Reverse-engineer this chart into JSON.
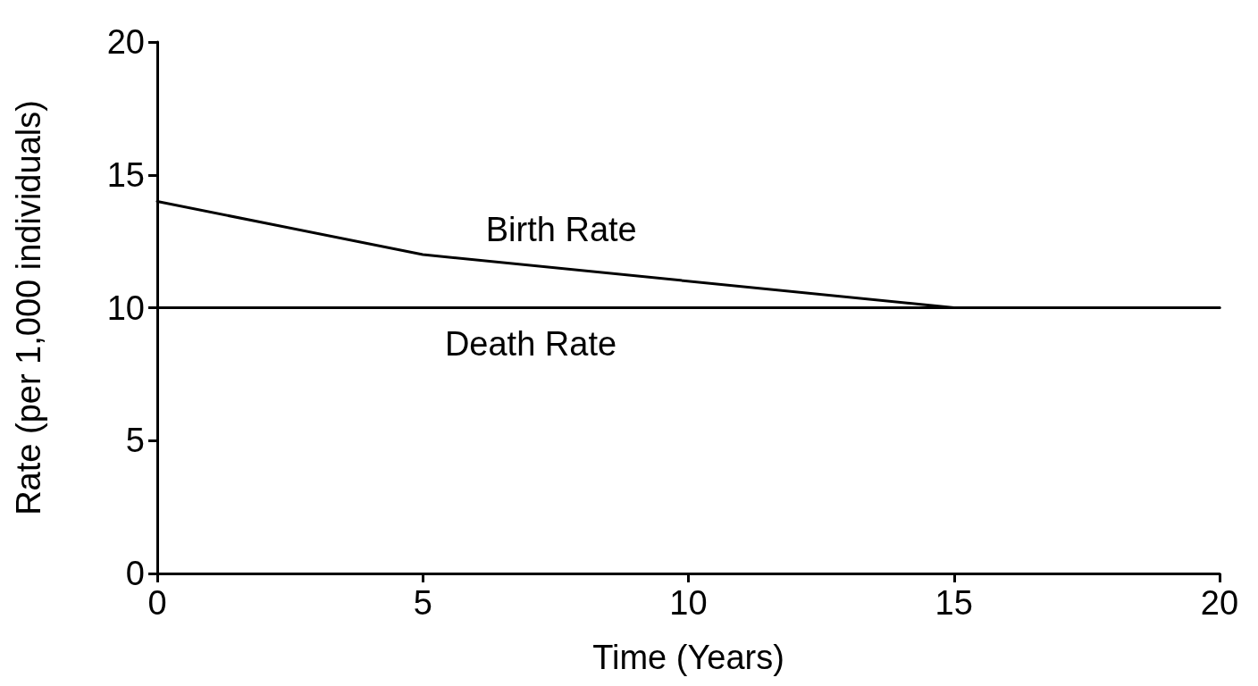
{
  "chart_data": {
    "type": "line",
    "xlabel": "Time (Years)",
    "ylabel": "Rate (per 1,000 individuals)",
    "xlim": [
      0,
      20
    ],
    "xticks": [
      0,
      5,
      10,
      15,
      20
    ],
    "ylim": [
      0,
      20
    ],
    "yticks": [
      0,
      5,
      10,
      15,
      20
    ],
    "grid": false,
    "legend": false,
    "marker": "none",
    "line_style": "solid",
    "series": [
      {
        "name": "Birth Rate",
        "color": "#000000",
        "x": [
          0,
          5,
          15,
          20
        ],
        "values": [
          14,
          12,
          10,
          10
        ]
      },
      {
        "name": "Death Rate",
        "color": "#000000",
        "x": [
          0,
          20
        ],
        "values": [
          10,
          10
        ]
      }
    ]
  }
}
